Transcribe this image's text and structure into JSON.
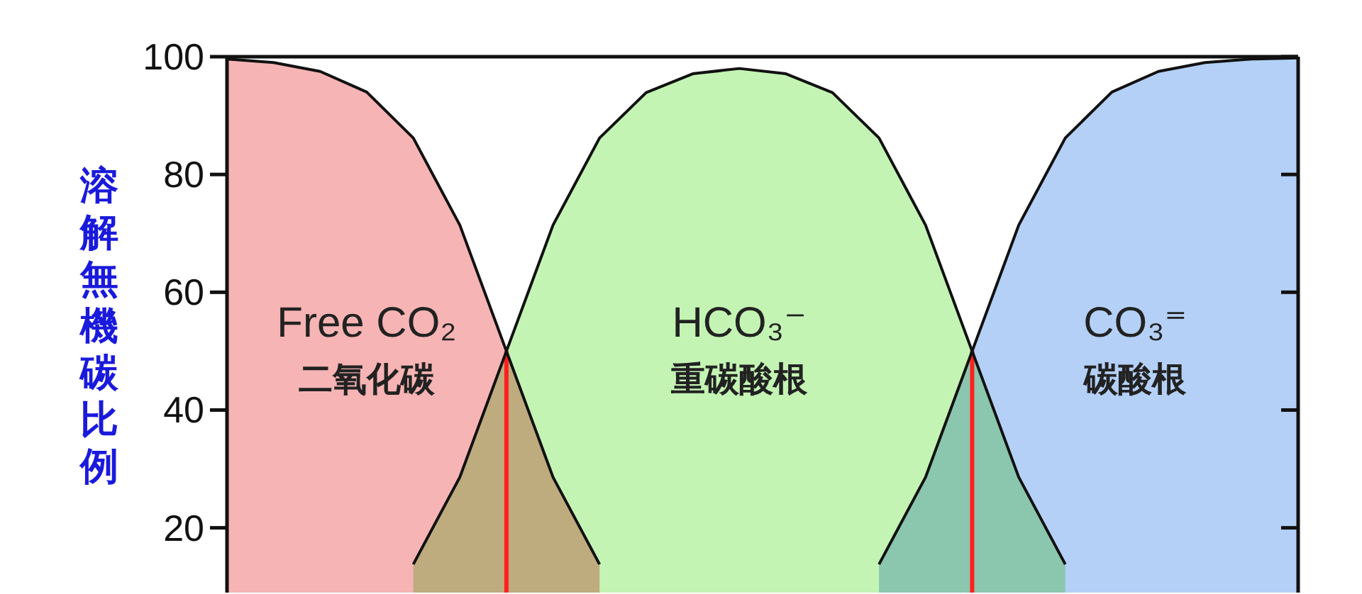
{
  "chart_data": {
    "type": "area",
    "ylabel": "溶解無機碳比例",
    "tick_labels": "y",
    "ylim": [
      9,
      100
    ],
    "yticks": [
      20,
      40,
      60,
      80,
      100
    ],
    "categories": [
      null,
      null,
      null,
      null,
      null,
      null,
      null,
      null,
      null,
      null,
      null,
      null,
      null,
      null,
      null,
      null,
      null,
      null,
      null,
      null,
      null,
      null,
      null,
      null
    ],
    "series": [
      {
        "name": "Free CO₂\n二氧化碳",
        "color": "#f7b4b4",
        "values": [
          99.6,
          99.0,
          97.5,
          94.0,
          86.2,
          71.4,
          50,
          28.6,
          13.8,
          null,
          null,
          null,
          null,
          null,
          null,
          null,
          null,
          null,
          null,
          null,
          null,
          null,
          null,
          null
        ]
      },
      {
        "name": "HCO₃⁻\n重碳酸根",
        "color": "#c4f4b4",
        "values": [
          null,
          null,
          null,
          null,
          13.8,
          28.6,
          50,
          71.4,
          86.2,
          93.9,
          97.1,
          98.0,
          97.1,
          93.9,
          86.2,
          71.4,
          50,
          28.6,
          13.8,
          null,
          null,
          null,
          null,
          null
        ]
      },
      {
        "name": "CO₃⁼\n碳酸根",
        "color": "#b4d0f7",
        "values": [
          null,
          null,
          null,
          null,
          null,
          null,
          null,
          null,
          null,
          null,
          null,
          null,
          null,
          null,
          13.8,
          28.6,
          50,
          71.4,
          86.2,
          94.0,
          97.5,
          99.0,
          99.6,
          99.8
        ]
      },
      {
        "type": "bar",
        "color": "#ff2020",
        "values": [
          null,
          null,
          null,
          null,
          null,
          null,
          50,
          null,
          null,
          null,
          null,
          null,
          null,
          null,
          null,
          null,
          50,
          null,
          null,
          null,
          null,
          null,
          null,
          null
        ]
      }
    ]
  }
}
